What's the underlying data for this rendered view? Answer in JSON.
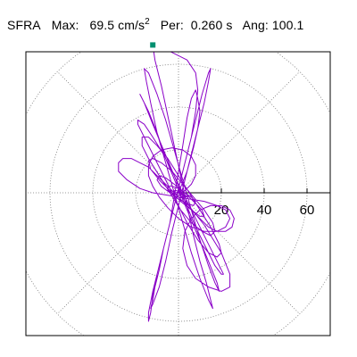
{
  "header": {
    "station": "SFRA",
    "max_label": "Max:",
    "max_value": "69.5",
    "max_unit": "cm/s",
    "max_unit_exp": "2",
    "per_label": "Per:",
    "per_value": "0.260 s",
    "ang_label": "Ang:",
    "ang_value": "100.1"
  },
  "chart_data": {
    "type": "line",
    "title": "SFRA  Max: 69.5 cm/s2  Per: 0.260 s  Ang: 100.1",
    "subplot": "polar acceleration hodogram (particle motion)",
    "units": "cm/s2",
    "rlim": [
      0,
      80
    ],
    "radial_rings": [
      20,
      40,
      60,
      80
    ],
    "tick_labels": [
      "20",
      "40",
      "60"
    ],
    "tick_values": [
      20,
      40,
      60
    ],
    "spoke_angles_deg": [
      0,
      45,
      90,
      135,
      180,
      225,
      270,
      315
    ],
    "grid": true,
    "max_point": {
      "x": -12,
      "y": 69
    },
    "colors": {
      "trace": "#8a00c8",
      "marker": "#009070",
      "grid": "#777777",
      "frame": "#000000"
    },
    "series": [
      {
        "points": [
          [
            0,
            0
          ],
          [
            4,
            10
          ],
          [
            7,
            21
          ],
          [
            9,
            30
          ],
          [
            10,
            38
          ],
          [
            9,
            44
          ],
          [
            8,
            48
          ],
          [
            6,
            44
          ],
          [
            4,
            35
          ],
          [
            2,
            22
          ],
          [
            0,
            10
          ],
          [
            -2,
            -2
          ],
          [
            -4,
            -14
          ],
          [
            -7,
            -26
          ],
          [
            -9,
            -36
          ],
          [
            -11,
            -44
          ],
          [
            -12,
            -50
          ],
          [
            -13,
            -54
          ],
          [
            -12,
            -52
          ],
          [
            -9,
            -44
          ],
          [
            -6,
            -32
          ],
          [
            -3,
            -18
          ],
          [
            0,
            -6
          ],
          [
            3,
            6
          ],
          [
            6,
            18
          ],
          [
            9,
            30
          ],
          [
            12,
            42
          ],
          [
            14,
            52
          ],
          [
            15,
            58
          ],
          [
            14,
            56
          ],
          [
            11,
            46
          ],
          [
            8,
            34
          ],
          [
            5,
            22
          ],
          [
            2,
            10
          ],
          [
            -1,
            -2
          ],
          [
            -4,
            -14
          ],
          [
            -7,
            -26
          ],
          [
            -10,
            -38
          ],
          [
            -12,
            -48
          ],
          [
            -13,
            -56
          ],
          [
            -14,
            -60
          ],
          [
            -14,
            -56
          ],
          [
            -12,
            -46
          ],
          [
            -9,
            -34
          ],
          [
            -6,
            -22
          ],
          [
            -3,
            -10
          ],
          [
            0,
            2
          ],
          [
            3,
            14
          ],
          [
            6,
            26
          ],
          [
            8,
            38
          ],
          [
            9,
            48
          ],
          [
            8,
            56
          ],
          [
            4,
            62
          ],
          [
            -4,
            66
          ],
          [
            -12,
            69
          ],
          [
            -11,
            62
          ],
          [
            -8,
            50
          ],
          [
            -5,
            36
          ],
          [
            -2,
            22
          ],
          [
            1,
            8
          ],
          [
            4,
            -6
          ],
          [
            7,
            -20
          ],
          [
            10,
            -32
          ],
          [
            13,
            -42
          ],
          [
            15,
            -50
          ],
          [
            16,
            -54
          ],
          [
            14,
            -50
          ],
          [
            10,
            -40
          ],
          [
            6,
            -28
          ],
          [
            2,
            -14
          ],
          [
            -2,
            0
          ],
          [
            -6,
            14
          ],
          [
            -10,
            28
          ],
          [
            -13,
            42
          ],
          [
            -15,
            52
          ],
          [
            -16,
            58
          ],
          [
            -14,
            56
          ],
          [
            -10,
            46
          ],
          [
            -6,
            34
          ],
          [
            -2,
            20
          ],
          [
            2,
            6
          ],
          [
            6,
            -8
          ],
          [
            10,
            -22
          ],
          [
            14,
            -34
          ],
          [
            17,
            -42
          ],
          [
            19,
            -46
          ],
          [
            18,
            -42
          ],
          [
            14,
            -32
          ],
          [
            9,
            -20
          ],
          [
            4,
            -8
          ],
          [
            -1,
            4
          ],
          [
            -6,
            16
          ],
          [
            -10,
            28
          ],
          [
            -14,
            38
          ],
          [
            -17,
            44
          ],
          [
            -18,
            46
          ],
          [
            -16,
            42
          ],
          [
            -12,
            32
          ],
          [
            -7,
            20
          ],
          [
            -2,
            8
          ],
          [
            3,
            -4
          ],
          [
            8,
            -16
          ],
          [
            13,
            -26
          ],
          [
            17,
            -34
          ],
          [
            20,
            -38
          ],
          [
            21,
            -38
          ],
          [
            18,
            -32
          ],
          [
            13,
            -22
          ],
          [
            8,
            -12
          ],
          [
            3,
            -2
          ],
          [
            -2,
            8
          ],
          [
            -7,
            18
          ],
          [
            -12,
            26
          ],
          [
            -16,
            32
          ],
          [
            -19,
            34
          ],
          [
            -19,
            32
          ],
          [
            -16,
            26
          ],
          [
            -11,
            16
          ],
          [
            -6,
            6
          ],
          [
            -1,
            -4
          ],
          [
            4,
            -14
          ],
          [
            9,
            -22
          ],
          [
            14,
            -28
          ],
          [
            18,
            -30
          ],
          [
            20,
            -28
          ],
          [
            19,
            -24
          ],
          [
            15,
            -16
          ],
          [
            10,
            -8
          ],
          [
            5,
            0
          ],
          [
            0,
            8
          ],
          [
            -5,
            16
          ],
          [
            -10,
            22
          ],
          [
            -14,
            26
          ],
          [
            -17,
            26
          ],
          [
            -17,
            22
          ],
          [
            -14,
            16
          ],
          [
            -9,
            8
          ],
          [
            -4,
            0
          ],
          [
            1,
            -8
          ],
          [
            6,
            -14
          ],
          [
            11,
            -18
          ],
          [
            15,
            -20
          ],
          [
            17,
            -18
          ],
          [
            16,
            -14
          ],
          [
            12,
            -8
          ],
          [
            7,
            -2
          ],
          [
            2,
            4
          ],
          [
            -3,
            10
          ],
          [
            -8,
            14
          ],
          [
            -12,
            16
          ],
          [
            -14,
            15
          ],
          [
            -13,
            11
          ],
          [
            -9,
            6
          ],
          [
            -4,
            1
          ],
          [
            1,
            -4
          ],
          [
            6,
            -8
          ],
          [
            10,
            -11
          ],
          [
            12,
            -11
          ],
          [
            11,
            -8
          ],
          [
            7,
            -4
          ],
          [
            3,
            0
          ],
          [
            -2,
            4
          ],
          [
            -6,
            7
          ],
          [
            -9,
            8
          ],
          [
            -10,
            6
          ],
          [
            -8,
            3
          ],
          [
            -4,
            0
          ],
          [
            0,
            -3
          ],
          [
            4,
            -5
          ],
          [
            7,
            -6
          ],
          [
            8,
            -4
          ],
          [
            6,
            -2
          ],
          [
            3,
            0
          ],
          [
            0,
            2
          ],
          [
            -3,
            3
          ],
          [
            -5,
            3
          ],
          [
            -5,
            1
          ],
          [
            -3,
            0
          ],
          [
            0,
            -1
          ],
          [
            2,
            -2
          ],
          [
            4,
            -2
          ],
          [
            3,
            -1
          ],
          [
            1,
            0
          ],
          [
            -1,
            1
          ],
          [
            -2,
            1
          ],
          [
            -2,
            0
          ],
          [
            0,
            0
          ],
          [
            2,
            -1
          ],
          [
            3,
            -2
          ],
          [
            2,
            0
          ],
          [
            0,
            1
          ],
          [
            -1,
            0
          ],
          [
            0,
            0
          ],
          [
            12,
            -15
          ],
          [
            20,
            -28
          ],
          [
            24,
            -38
          ],
          [
            24,
            -44
          ],
          [
            20,
            -46
          ],
          [
            14,
            -44
          ],
          [
            8,
            -40
          ],
          [
            4,
            -34
          ],
          [
            2,
            -26
          ],
          [
            3,
            -18
          ],
          [
            6,
            -12
          ],
          [
            10,
            -8
          ],
          [
            15,
            -6
          ],
          [
            20,
            -6
          ],
          [
            24,
            -8
          ],
          [
            26,
            -12
          ],
          [
            25,
            -16
          ],
          [
            22,
            -18
          ],
          [
            18,
            -18
          ],
          [
            14,
            -16
          ],
          [
            10,
            -12
          ],
          [
            6,
            -8
          ],
          [
            2,
            -4
          ],
          [
            -2,
            0
          ],
          [
            -6,
            4
          ],
          [
            -10,
            8
          ],
          [
            -14,
            12
          ],
          [
            -18,
            14
          ],
          [
            -22,
            16
          ],
          [
            -26,
            16
          ],
          [
            -28,
            14
          ],
          [
            -28,
            10
          ],
          [
            -24,
            6
          ],
          [
            -18,
            2
          ],
          [
            -12,
            0
          ],
          [
            -6,
            -1
          ],
          [
            0,
            -2
          ],
          [
            6,
            -3
          ],
          [
            12,
            -4
          ],
          [
            18,
            -6
          ],
          [
            22,
            -8
          ],
          [
            24,
            -12
          ],
          [
            22,
            -16
          ],
          [
            18,
            -18
          ],
          [
            12,
            -18
          ],
          [
            6,
            -16
          ],
          [
            0,
            -12
          ],
          [
            -5,
            -7
          ],
          [
            -9,
            -2
          ],
          [
            -12,
            3
          ],
          [
            -14,
            8
          ],
          [
            -14,
            13
          ],
          [
            -12,
            17
          ],
          [
            -8,
            20
          ],
          [
            -3,
            21
          ],
          [
            2,
            20
          ],
          [
            6,
            17
          ],
          [
            8,
            13
          ],
          [
            8,
            8
          ],
          [
            6,
            4
          ],
          [
            3,
            1
          ],
          [
            0,
            0
          ]
        ]
      }
    ]
  }
}
